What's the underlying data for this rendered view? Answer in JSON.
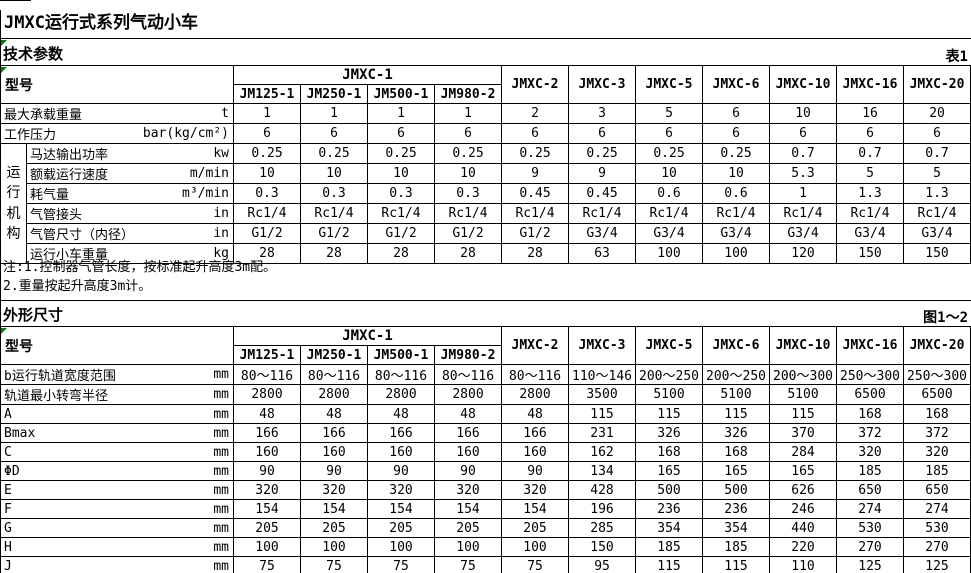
{
  "title": "JMXC运行式系列气动小车",
  "colors": {
    "text": "#000000",
    "border": "#000000",
    "background": "#ffffff",
    "error_marker_green": "#008000"
  },
  "notes": [
    "注:1.控制器气管长度，按标准起升高度3m配。",
    "2.重量按起升高度3m计。"
  ],
  "table1": {
    "section_title": "技术参数",
    "corner_label": "表1",
    "model_header": "型号",
    "group_header": "JMXC-1",
    "sub_models": [
      "JM125-1",
      "JM250-1",
      "JM500-1",
      "JM980-2"
    ],
    "single_models": [
      "JMXC-2",
      "JMXC-3",
      "JMXC-5",
      "JMXC-6",
      "JMXC-10",
      "JMXC-16",
      "JMXC-20"
    ],
    "row_group_label": "运行机构",
    "rows": [
      {
        "label": "最大承载重量",
        "unit": "t",
        "values": [
          "1",
          "1",
          "1",
          "1",
          "2",
          "3",
          "5",
          "6",
          "10",
          "16",
          "20"
        ]
      },
      {
        "label": "工作压力",
        "unit": "bar(kg/cm²)",
        "values": [
          "6",
          "6",
          "6",
          "6",
          "6",
          "6",
          "6",
          "6",
          "6",
          "6",
          "6"
        ]
      },
      {
        "label": "马达输出功率",
        "unit": "kw",
        "values": [
          "0.25",
          "0.25",
          "0.25",
          "0.25",
          "0.25",
          "0.25",
          "0.25",
          "0.25",
          "0.7",
          "0.7",
          "0.7"
        ]
      },
      {
        "label": "额载运行速度",
        "unit": "m/min",
        "values": [
          "10",
          "10",
          "10",
          "10",
          "9",
          "9",
          "10",
          "10",
          "5.3",
          "5",
          "5"
        ]
      },
      {
        "label": "耗气量",
        "unit": "m³/min",
        "values": [
          "0.3",
          "0.3",
          "0.3",
          "0.3",
          "0.45",
          "0.45",
          "0.6",
          "0.6",
          "1",
          "1.3",
          "1.3"
        ]
      },
      {
        "label": " 气管接头",
        "unit": "in",
        "values": [
          "Rc1/4",
          "Rc1/4",
          "Rc1/4",
          "Rc1/4",
          "Rc1/4",
          "Rc1/4",
          "Rc1/4",
          "Rc1/4",
          "Rc1/4",
          "Rc1/4",
          "Rc1/4"
        ]
      },
      {
        "label": "气管尺寸（内径）",
        "unit": "in",
        "values": [
          "G1/2",
          "G1/2",
          "G1/2",
          "G1/2",
          "G1/2",
          "G3/4",
          "G3/4",
          "G3/4",
          "G3/4",
          "G3/4",
          "G3/4"
        ]
      },
      {
        "label": "运行小车重量",
        "unit": "kg",
        "values": [
          "28",
          "28",
          "28",
          "28",
          "28",
          "63",
          "100",
          "100",
          "120",
          "150",
          "150"
        ]
      }
    ]
  },
  "table2": {
    "section_title": "外形尺寸",
    "corner_label": "图1～2",
    "model_header": "型号",
    "group_header": "JMXC-1",
    "sub_models": [
      "JM125-1",
      "JM250-1",
      "JM500-1",
      "JM980-2"
    ],
    "single_models": [
      "JMXC-2",
      "JMXC-3",
      "JMXC-5",
      "JMXC-6",
      "JMXC-10",
      "JMXC-16",
      "JMXC-20"
    ],
    "rows": [
      {
        "label": "b运行轨道宽度范围",
        "unit": "mm",
        "values": [
          "80～116",
          "80～116",
          "80～116",
          "80～116",
          "80～116",
          "110～146",
          "200～250",
          "200～250",
          "200～300",
          "250～300",
          "250～300"
        ]
      },
      {
        "label": "轨道最小转弯半径",
        "unit": "mm",
        "values": [
          "2800",
          "2800",
          "2800",
          "2800",
          "2800",
          "3500",
          "5100",
          "5100",
          "5100",
          "6500",
          "6500"
        ]
      },
      {
        "label": "A",
        "unit": "mm",
        "values": [
          "48",
          "48",
          "48",
          "48",
          "48",
          "115",
          "115",
          "115",
          "115",
          "168",
          "168"
        ]
      },
      {
        "label": "Bmax",
        "unit": "mm",
        "values": [
          "166",
          "166",
          "166",
          "166",
          "166",
          "231",
          "326",
          "326",
          "370",
          "372",
          "372"
        ]
      },
      {
        "label": "C",
        "unit": "mm",
        "values": [
          "160",
          "160",
          "160",
          "160",
          "160",
          "162",
          "168",
          "168",
          "284",
          "320",
          "320"
        ]
      },
      {
        "label": " ΦD",
        "unit": "mm",
        "values": [
          "90",
          "90",
          "90",
          "90",
          "90",
          "134",
          "165",
          "165",
          "165",
          "185",
          "185"
        ]
      },
      {
        "label": "E",
        "unit": "mm",
        "values": [
          "320",
          "320",
          "320",
          "320",
          "320",
          "428",
          "500",
          "500",
          "626",
          "650",
          "650"
        ]
      },
      {
        "label": "F",
        "unit": "mm",
        "values": [
          "154",
          "154",
          "154",
          "154",
          "154",
          "196",
          "236",
          "236",
          "246",
          "274",
          "274"
        ]
      },
      {
        "label": "G",
        "unit": "mm",
        "values": [
          "205",
          "205",
          "205",
          "205",
          "205",
          "285",
          "354",
          "354",
          "440",
          "530",
          "530"
        ]
      },
      {
        "label": "H",
        "unit": "mm",
        "values": [
          "100",
          "100",
          "100",
          "100",
          "100",
          "150",
          "185",
          "185",
          "220",
          "270",
          "270"
        ]
      },
      {
        "label": "J",
        "unit": "mm",
        "values": [
          "75",
          "75",
          "75",
          "75",
          "75",
          "95",
          "115",
          "115",
          "110",
          "125",
          "125"
        ]
      }
    ]
  }
}
